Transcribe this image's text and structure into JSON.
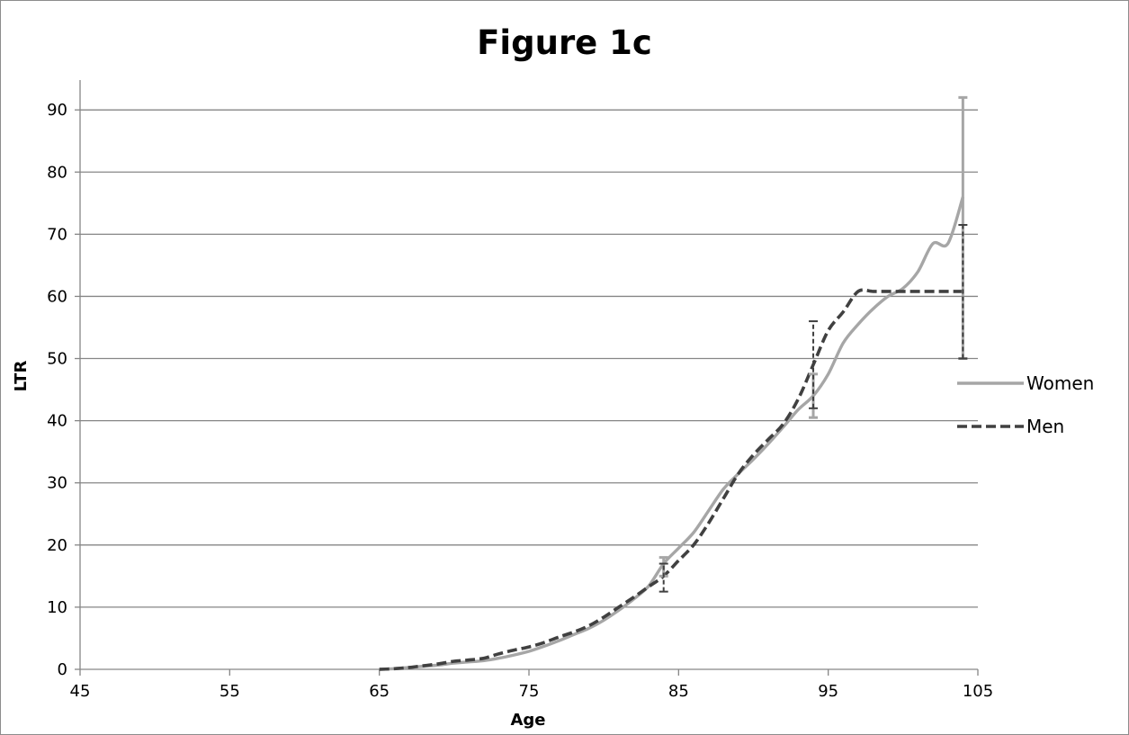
{
  "chart_data": {
    "type": "line",
    "title": "Figure 1c",
    "xlabel": "Age",
    "ylabel": "LTR",
    "xlim": [
      45,
      105
    ],
    "ylim": [
      0,
      90
    ],
    "x_ticks": [
      45,
      55,
      65,
      75,
      85,
      95,
      105
    ],
    "y_ticks": [
      0,
      10,
      20,
      30,
      40,
      50,
      60,
      70,
      80,
      90
    ],
    "grid": "horizontal",
    "legend_position": "right",
    "series": [
      {
        "name": "Women",
        "color": "#a6a6a6",
        "style": "solid",
        "x": [
          65,
          66,
          67,
          68,
          69,
          70,
          71,
          72,
          73,
          74,
          75,
          76,
          77,
          78,
          79,
          80,
          81,
          82,
          83,
          84,
          85,
          86,
          87,
          88,
          89,
          90,
          91,
          92,
          93,
          94,
          95,
          96,
          97,
          98,
          99,
          100,
          101,
          102,
          103,
          104
        ],
        "y": [
          0,
          0.1,
          0.3,
          0.5,
          0.7,
          1.0,
          1.2,
          1.4,
          1.8,
          2.3,
          2.9,
          3.7,
          4.6,
          5.6,
          6.6,
          7.9,
          9.5,
          11.3,
          13.4,
          17.0,
          19.5,
          22.0,
          25.5,
          29.0,
          31.5,
          33.8,
          36.3,
          39.0,
          41.8,
          44.0,
          47.5,
          52.5,
          55.5,
          58.0,
          60.0,
          61.3,
          64.0,
          68.5,
          68.5,
          76.0
        ],
        "error_bars": [
          {
            "x": 84,
            "low": 15.0,
            "high": 18.0
          },
          {
            "x": 94,
            "low": 40.5,
            "high": 47.5
          },
          {
            "x": 104,
            "low": 50.0,
            "high": 92.0
          }
        ]
      },
      {
        "name": "Men",
        "color": "#404040",
        "style": "dashed",
        "x": [
          65,
          66,
          67,
          68,
          69,
          70,
          71,
          72,
          73,
          74,
          75,
          76,
          77,
          78,
          79,
          80,
          81,
          82,
          83,
          84,
          85,
          86,
          87,
          88,
          89,
          90,
          91,
          92,
          93,
          94,
          95,
          96,
          97,
          98,
          99,
          100,
          101,
          102,
          103,
          104
        ],
        "y": [
          0,
          0.1,
          0.3,
          0.6,
          0.9,
          1.3,
          1.5,
          1.8,
          2.5,
          3.1,
          3.6,
          4.3,
          5.2,
          6.0,
          7.0,
          8.4,
          10.0,
          11.6,
          13.3,
          15.0,
          17.5,
          20.0,
          23.5,
          27.5,
          31.5,
          34.5,
          37.0,
          39.5,
          43.5,
          49.0,
          54.5,
          57.5,
          60.8,
          60.8,
          60.8,
          60.8,
          60.8,
          60.8,
          60.8,
          60.8
        ],
        "error_bars": [
          {
            "x": 84,
            "low": 12.5,
            "high": 17.0
          },
          {
            "x": 94,
            "low": 42.0,
            "high": 56.0
          },
          {
            "x": 104,
            "low": 50.0,
            "high": 71.5
          }
        ]
      }
    ]
  }
}
